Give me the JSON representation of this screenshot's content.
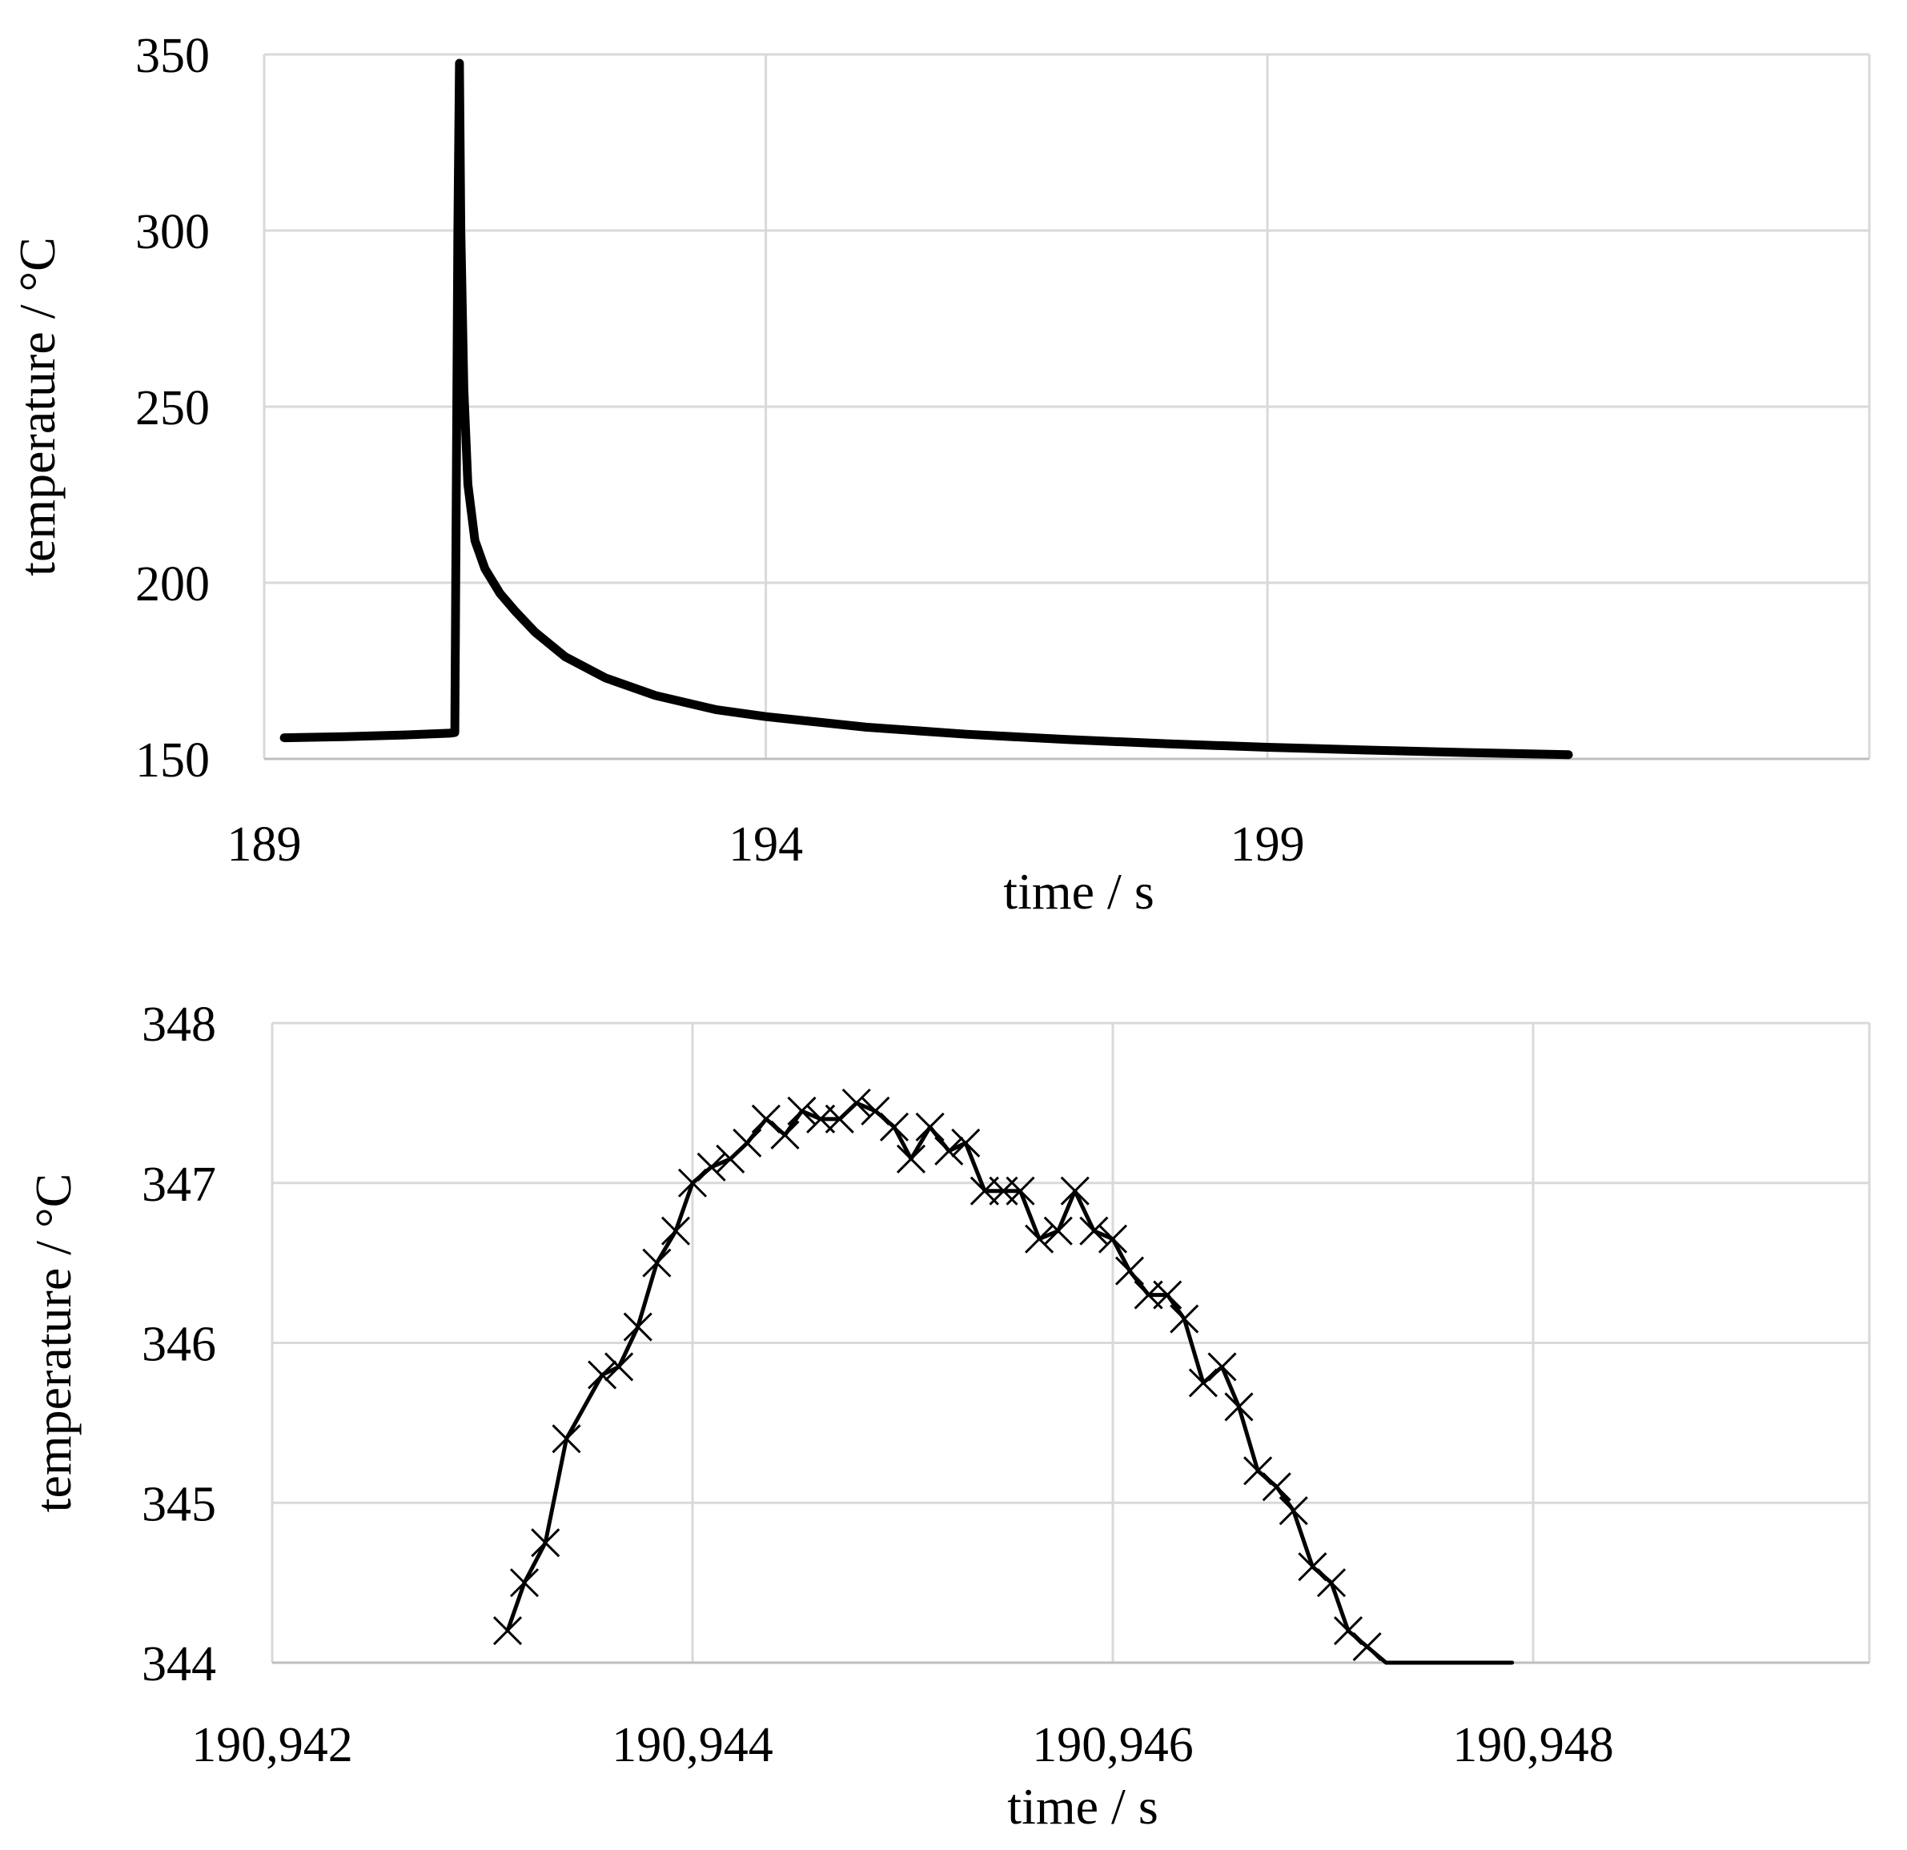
{
  "chart_data": [
    {
      "type": "line",
      "title": "",
      "xlabel": "time / s",
      "ylabel": "temperature / °C",
      "xlim": [
        189,
        205
      ],
      "ylim": [
        150,
        350
      ],
      "x_ticks": [
        189,
        194,
        199
      ],
      "x_tick_labels": [
        "189",
        "194",
        "199"
      ],
      "y_ticks": [
        150,
        200,
        250,
        300,
        350
      ],
      "y_tick_labels": [
        "150",
        "200",
        "250",
        "300",
        "350"
      ],
      "grid": true,
      "series": [
        {
          "color": "#000000",
          "x": [
            189.2,
            189.8,
            190.4,
            190.85,
            190.9,
            190.93,
            190.946,
            190.96,
            190.99,
            191.03,
            191.1,
            191.2,
            191.35,
            191.5,
            191.7,
            192.0,
            192.4,
            192.9,
            193.5,
            194.0,
            195.0,
            196.0,
            197.0,
            198.0,
            199.0,
            200.0,
            201.0,
            202.0
          ],
          "y": [
            156,
            156.3,
            156.8,
            157.3,
            157.5,
            300,
            347.5,
            300,
            255,
            228,
            212,
            204,
            197,
            192,
            186,
            179,
            173,
            168,
            164,
            162,
            159,
            157,
            155.5,
            154.3,
            153.3,
            152.5,
            151.8,
            151.2
          ]
        }
      ]
    },
    {
      "type": "line",
      "title": "",
      "xlabel": "time / s",
      "ylabel": "temperature / °C",
      "xlim": [
        190.942,
        190.9496
      ],
      "ylim": [
        344,
        348
      ],
      "x_ticks": [
        190.942,
        190.944,
        190.946,
        190.948
      ],
      "x_tick_labels": [
        "190,942",
        "190,944",
        "190,946",
        "190,948"
      ],
      "y_ticks": [
        344,
        345,
        346,
        347,
        348
      ],
      "y_tick_labels": [
        "344",
        "345",
        "346",
        "347",
        "348"
      ],
      "grid": true,
      "series": [
        {
          "color": "#000000",
          "marker": "x",
          "x": [
            190.94312,
            190.9432,
            190.9433,
            190.9434,
            190.94357,
            190.94365,
            190.94374,
            190.94383,
            190.94392,
            190.944,
            190.94409,
            190.94418,
            190.94426,
            190.94435,
            190.94444,
            190.94452,
            190.94461,
            190.9447,
            190.94478,
            190.94487,
            190.94496,
            190.94504,
            190.94513,
            190.94522,
            190.9453,
            190.94539,
            190.94548,
            190.94556,
            190.94565,
            190.94574,
            190.94582,
            190.94591,
            190.946,
            190.94608,
            190.94617,
            190.94626,
            190.94634,
            190.94643,
            190.94652,
            190.9466,
            190.94669,
            190.94678,
            190.94686,
            190.94695,
            190.94704,
            190.94712,
            190.94721,
            190.9473,
            190.94738,
            190.94747,
            190.94756,
            190.94764,
            190.94773,
            190.94782,
            190.9479
          ],
          "y": [
            344.2,
            344.5,
            344.75,
            345.4,
            345.8,
            345.85,
            346.1,
            346.5,
            346.7,
            347.0,
            347.1,
            347.15,
            347.25,
            347.4,
            347.3,
            347.45,
            347.4,
            347.4,
            347.5,
            347.45,
            347.35,
            347.15,
            347.35,
            347.2,
            347.25,
            346.95,
            346.95,
            346.95,
            346.65,
            346.7,
            346.95,
            346.7,
            346.65,
            346.45,
            346.3,
            346.3,
            346.15,
            345.75,
            345.85,
            345.6,
            345.2,
            345.1,
            344.95,
            344.6,
            344.5,
            344.2,
            344.1,
            344.0,
            344.0,
            344.0,
            344.0,
            344.0,
            344.0,
            344.0,
            344.0
          ]
        }
      ]
    }
  ]
}
